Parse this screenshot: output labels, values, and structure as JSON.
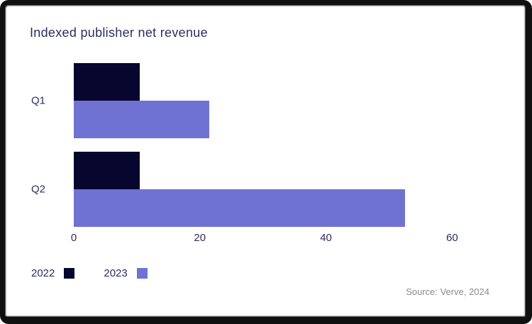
{
  "source": "Source: Verve, 2024",
  "colors": {
    "series_2022": "#06062F",
    "series_2023": "#6F72D2",
    "text": "#2D2D5E",
    "source_text": "#8C8C8C",
    "background": "#FFFFFF",
    "border": "#101010"
  },
  "legend": [
    {
      "label": "2022",
      "color": "#06062F"
    },
    {
      "label": "2023",
      "color": "#6F72D2"
    }
  ],
  "chart_data": {
    "type": "bar",
    "orientation": "horizontal",
    "title": "Indexed publisher net revenue",
    "categories": [
      "Q1",
      "Q2"
    ],
    "series": [
      {
        "name": "2022",
        "values": [
          10.5,
          10.5
        ],
        "color": "#06062F"
      },
      {
        "name": "2023",
        "values": [
          21.5,
          52.5
        ],
        "color": "#6F72D2"
      }
    ],
    "xlabel": "",
    "ylabel": "",
    "xlim": [
      0,
      63
    ],
    "xticks": [
      0,
      20,
      40,
      60
    ],
    "grid": false,
    "legend_position": "bottom-left",
    "source_note": "Source: Verve, 2024"
  }
}
